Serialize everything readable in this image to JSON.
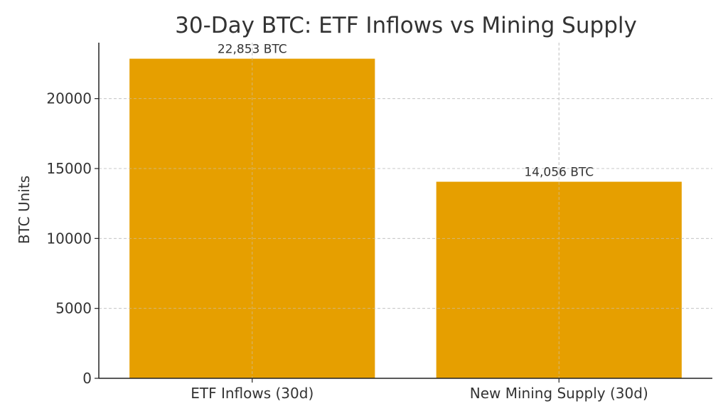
{
  "chart_data": {
    "type": "bar",
    "title": "30-Day BTC: ETF Inflows vs Mining Supply",
    "xlabel": "",
    "ylabel": "BTC Units",
    "categories": [
      "ETF Inflows (30d)",
      "New Mining Supply (30d)"
    ],
    "values": [
      22853,
      14056
    ],
    "data_labels": [
      "22,853 BTC",
      "14,056 BTC"
    ],
    "ylim": [
      0,
      24000
    ],
    "yticks": [
      0,
      5000,
      10000,
      15000,
      20000
    ],
    "ytick_labels": [
      "0",
      "5000",
      "10000",
      "15000",
      "20000"
    ],
    "grid": true,
    "bar_color": "#E69F00"
  }
}
